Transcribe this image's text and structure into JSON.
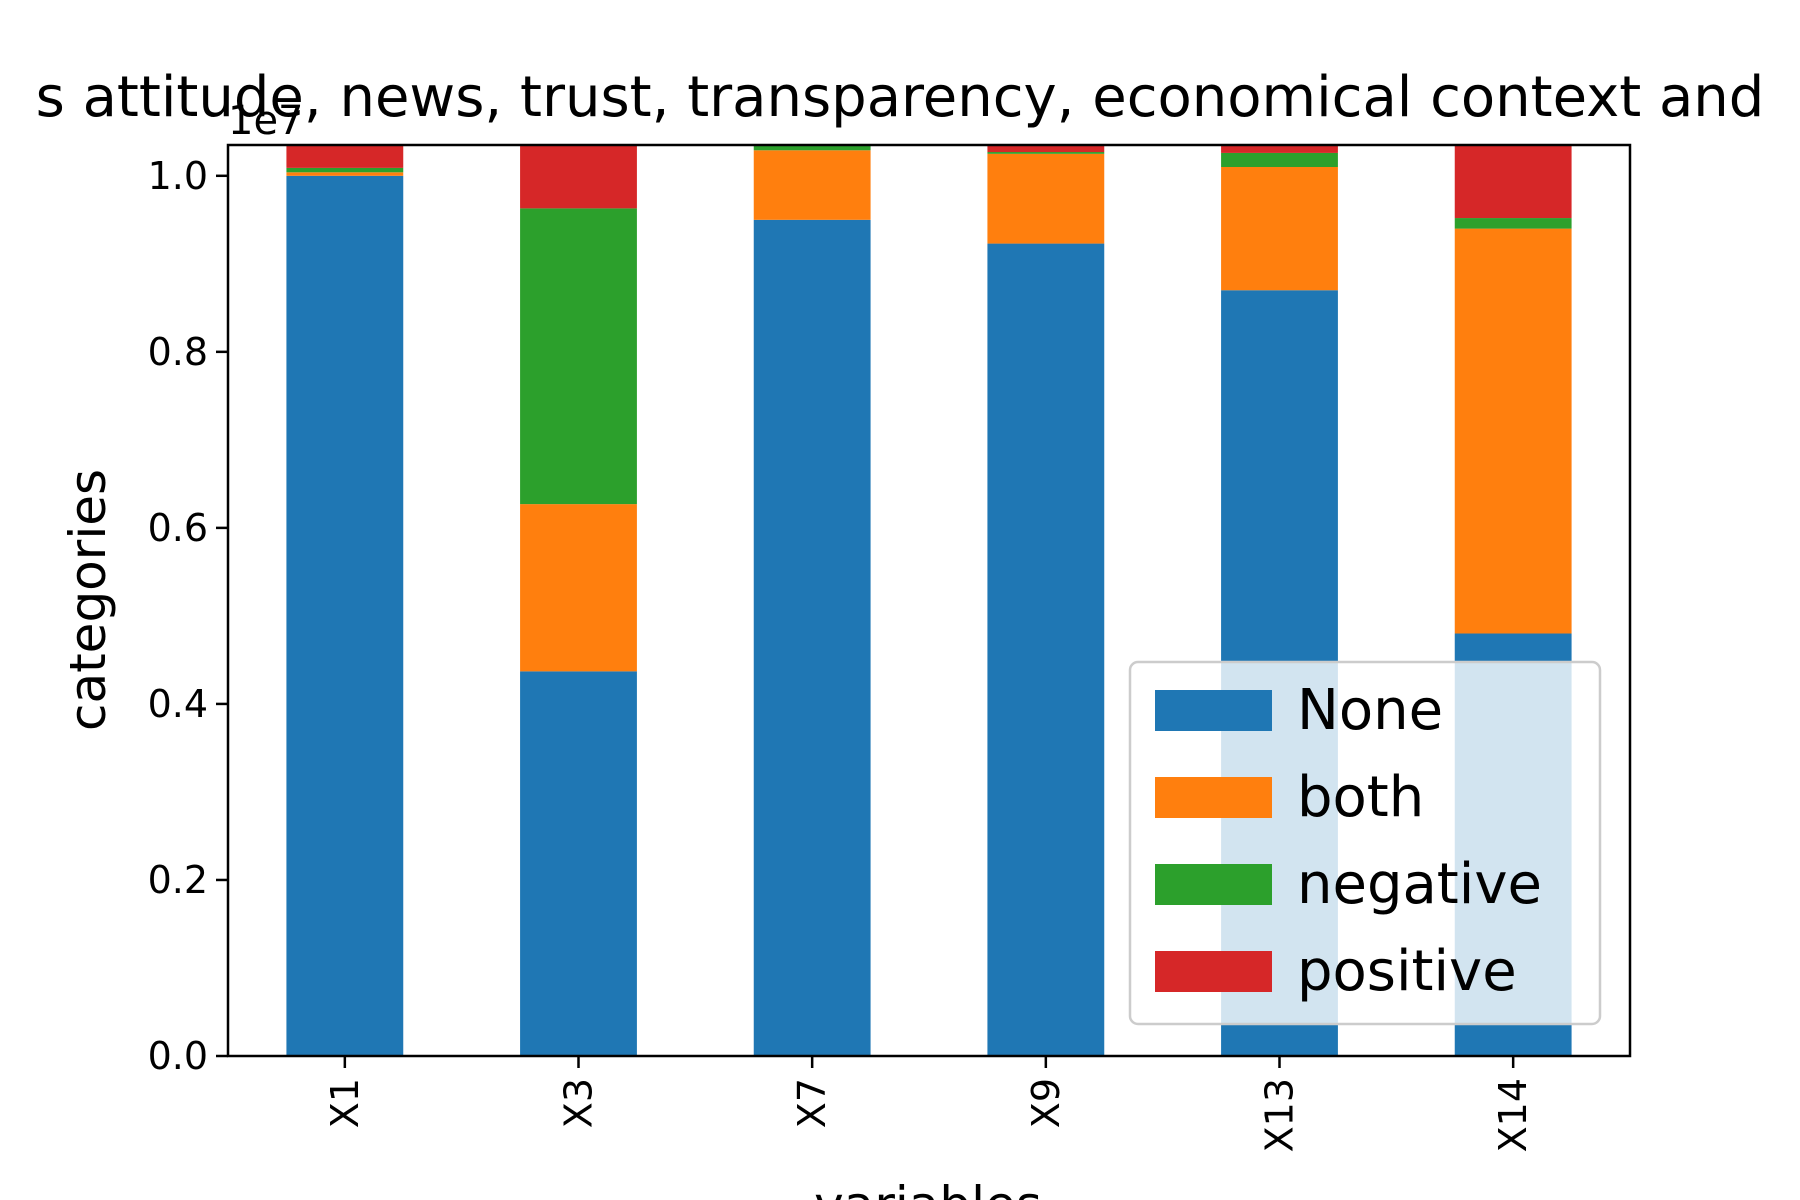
{
  "chart_data": {
    "type": "bar",
    "stacked": true,
    "title": "s attitude, news, trust, transparency, economical context and",
    "xlabel": "variables",
    "ylabel": "categories",
    "offset_label": "1e7",
    "categories": [
      "X1",
      "X3",
      "X7",
      "X9",
      "X13",
      "X14"
    ],
    "ylim": [
      0,
      1.035
    ],
    "yticks": [
      "0.0",
      "0.2",
      "0.4",
      "0.6",
      "0.8",
      "1.0"
    ],
    "ytick_values": [
      0.0,
      0.2,
      0.4,
      0.6,
      0.8,
      1.0
    ],
    "legend_position": "lower-right",
    "series": [
      {
        "name": "None",
        "color": "#1f77b4",
        "values": [
          1.0,
          0.437,
          0.95,
          0.923,
          0.87,
          0.48
        ]
      },
      {
        "name": "both",
        "color": "#ff7f0e",
        "values": [
          0.004,
          0.19,
          0.079,
          0.102,
          0.14,
          0.46
        ]
      },
      {
        "name": "negative",
        "color": "#2ca02c",
        "values": [
          0.005,
          0.336,
          0.006,
          0.002,
          0.016,
          0.012
        ]
      },
      {
        "name": "positive",
        "color": "#d62728",
        "values": [
          0.026,
          0.072,
          0.0,
          0.008,
          0.009,
          0.083
        ]
      }
    ]
  }
}
